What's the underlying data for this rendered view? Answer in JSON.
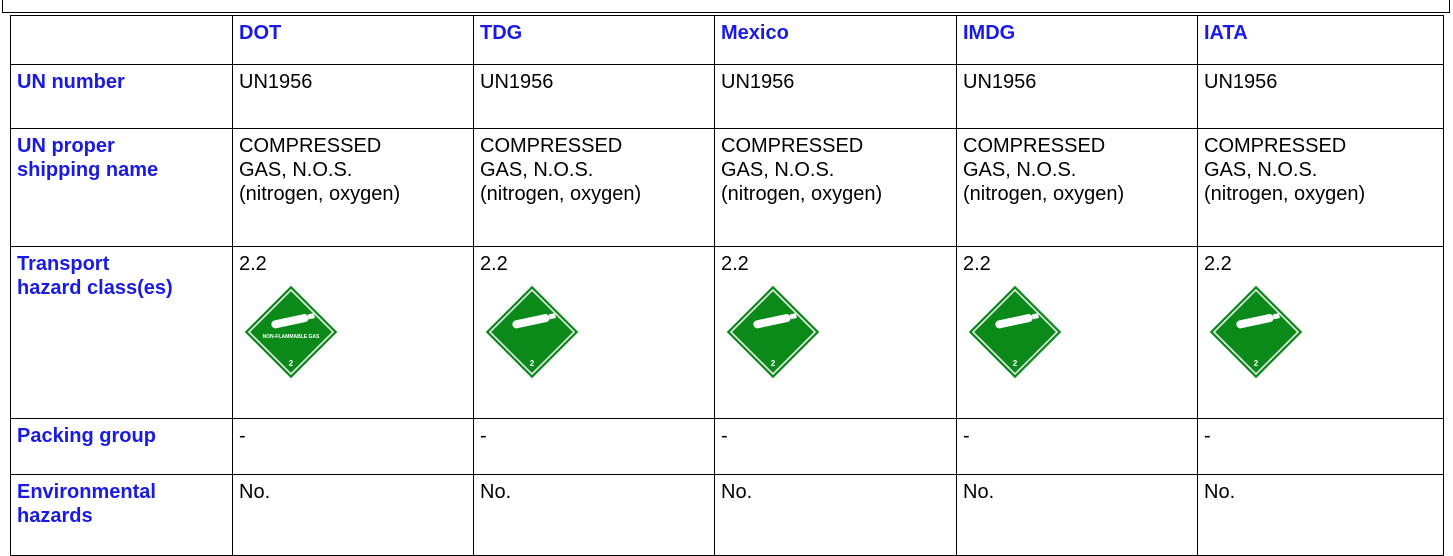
{
  "table": {
    "columns": [
      "DOT",
      "TDG",
      "Mexico",
      "IMDG",
      "IATA"
    ],
    "rows": [
      {
        "label": "UN number",
        "cells": [
          "UN1956",
          "UN1956",
          "UN1956",
          "UN1956",
          "UN1956"
        ]
      },
      {
        "label": "UN proper\nshipping name",
        "cells": [
          "COMPRESSED\nGAS, N.O.S.\n(nitrogen, oxygen)",
          "COMPRESSED\nGAS, N.O.S.\n(nitrogen, oxygen)",
          "COMPRESSED\nGAS, N.O.S.\n(nitrogen, oxygen)",
          "COMPRESSED\nGAS, N.O.S.\n(nitrogen, oxygen)",
          "COMPRESSED\nGAS, N.O.S.\n(nitrogen, oxygen)"
        ]
      },
      {
        "label": "Transport\nhazard class(es)",
        "cells": [
          "2.2",
          "2.2",
          "2.2",
          "2.2",
          "2.2"
        ]
      },
      {
        "label": "Packing group",
        "cells": [
          "-",
          "-",
          "-",
          "-",
          "-"
        ]
      },
      {
        "label": "Environmental\nhazards",
        "cells": [
          "No.",
          "No.",
          "No.",
          "No.",
          "No."
        ]
      }
    ],
    "placards": [
      {
        "text": "NON-FLAMMABLE GAS",
        "class": "2"
      },
      {
        "class": "2"
      },
      {
        "class": "2"
      },
      {
        "class": "2"
      },
      {
        "class": "2"
      }
    ]
  }
}
